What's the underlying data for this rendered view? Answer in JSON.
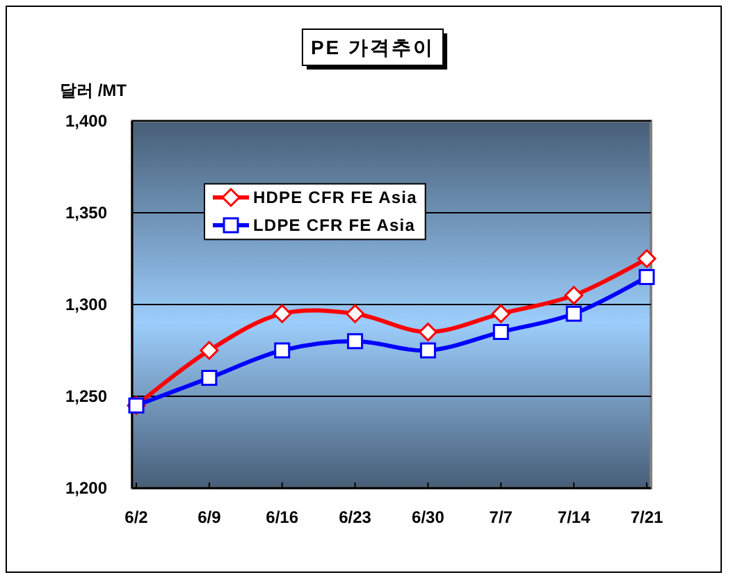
{
  "chart_data": {
    "type": "line",
    "title": "PE 가격추이",
    "ylabel": "달러 /MT",
    "categories": [
      "6/2",
      "6/9",
      "6/16",
      "6/23",
      "6/30",
      "7/7",
      "7/14",
      "7/21"
    ],
    "series": [
      {
        "name": "HDPE CFR FE Asia",
        "color": "#ff0000",
        "marker": "diamond",
        "values": [
          1245,
          1275,
          1295,
          1295,
          1285,
          1295,
          1305,
          1325
        ]
      },
      {
        "name": "LDPE CFR FE Asia",
        "color": "#0000ff",
        "marker": "square",
        "values": [
          1245,
          1260,
          1275,
          1280,
          1275,
          1285,
          1295,
          1315
        ]
      }
    ],
    "ylim": [
      1200,
      1400
    ],
    "yticks": [
      {
        "value": 1200,
        "label": "1,200"
      },
      {
        "value": 1250,
        "label": "1,250"
      },
      {
        "value": 1300,
        "label": "1,300"
      },
      {
        "value": 1350,
        "label": "1,350"
      },
      {
        "value": 1400,
        "label": "1,400"
      }
    ],
    "grid": "y",
    "legend": "top left"
  }
}
